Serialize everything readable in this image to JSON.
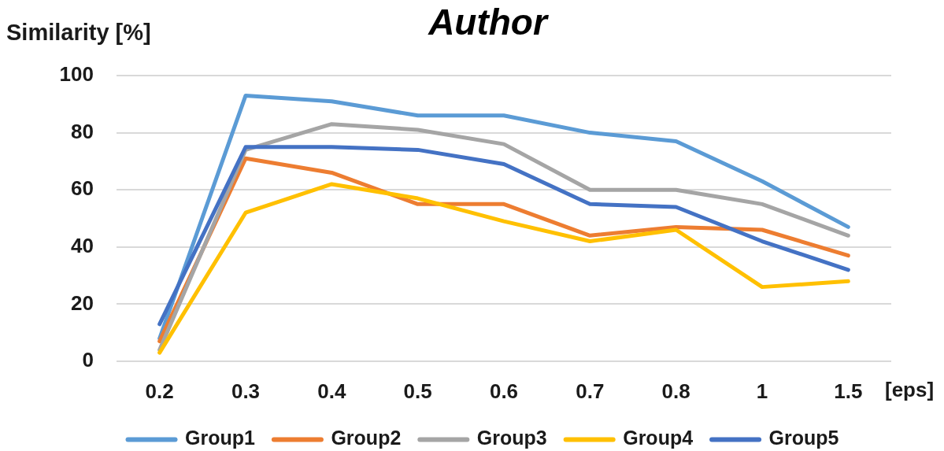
{
  "chart_data": {
    "type": "line",
    "title": "Author",
    "xlabel": "[eps]",
    "ylabel": "Similarity [%]",
    "categories": [
      "0.2",
      "0.3",
      "0.4",
      "0.5",
      "0.6",
      "0.7",
      "0.8",
      "1",
      "1.5"
    ],
    "ylim": [
      0,
      100
    ],
    "yticks": [
      0,
      20,
      40,
      60,
      80,
      100
    ],
    "grid": "y",
    "legend": "bottom",
    "marker": "none",
    "line_style": "solid",
    "series": [
      {
        "name": "Group1",
        "color": "#5b9bd5",
        "values": [
          8,
          93,
          91,
          86,
          86,
          80,
          77,
          63,
          47
        ]
      },
      {
        "name": "Group2",
        "color": "#ed7d31",
        "values": [
          7,
          71,
          66,
          55,
          55,
          44,
          47,
          46,
          37
        ]
      },
      {
        "name": "Group3",
        "color": "#a5a5a5",
        "values": [
          4,
          74,
          83,
          81,
          76,
          60,
          60,
          55,
          44
        ]
      },
      {
        "name": "Group4",
        "color": "#ffc000",
        "values": [
          3,
          52,
          62,
          57,
          49,
          42,
          46,
          26,
          28
        ]
      },
      {
        "name": "Group5",
        "color": "#4472c4",
        "values": [
          13,
          75,
          75,
          74,
          69,
          55,
          54,
          42,
          32
        ]
      }
    ]
  }
}
